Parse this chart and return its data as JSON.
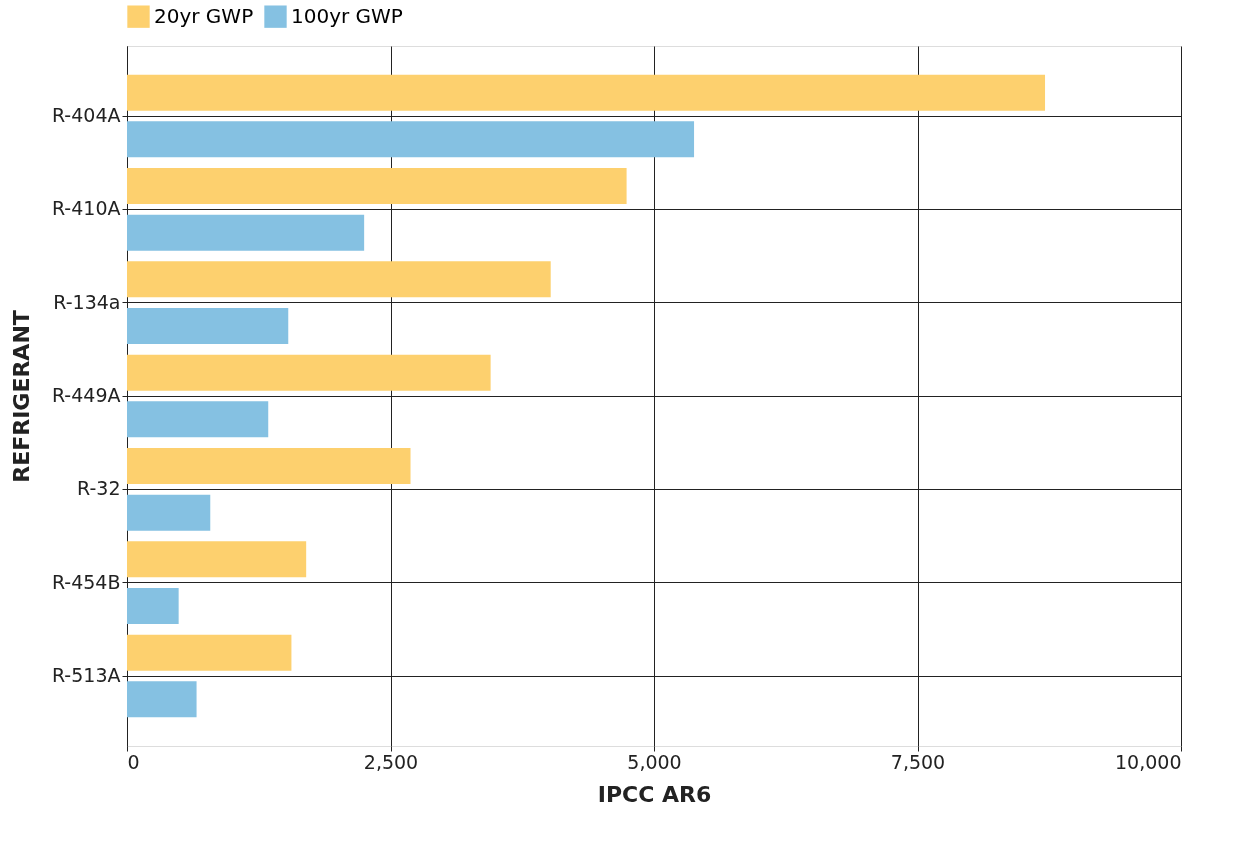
{
  "chart_data": {
    "type": "bar",
    "orientation": "horizontal",
    "xlabel": "IPCC AR6",
    "ylabel": "REFRIGERANT",
    "categories": [
      "R-404A",
      "R-410A",
      "R-134a",
      "R-449A",
      "R-32",
      "R-454B",
      "R-513A"
    ],
    "series": [
      {
        "name": "20yr GWP",
        "color": "#fdd06e",
        "values": [
          8710,
          4740,
          4020,
          3450,
          2690,
          1700,
          1560
        ]
      },
      {
        "name": "100yr GWP",
        "color": "#85c1e2",
        "values": [
          5380,
          2250,
          1530,
          1340,
          790,
          490,
          660
        ]
      }
    ],
    "xlim": [
      0,
      10000
    ],
    "xticks": [
      {
        "value": 0,
        "label": "0"
      },
      {
        "value": 2500,
        "label": "2,500"
      },
      {
        "value": 5000,
        "label": "5,000"
      },
      {
        "value": 7500,
        "label": "7,500"
      },
      {
        "value": 10000,
        "label": "10,000"
      }
    ],
    "grid": true,
    "legend": "top"
  }
}
